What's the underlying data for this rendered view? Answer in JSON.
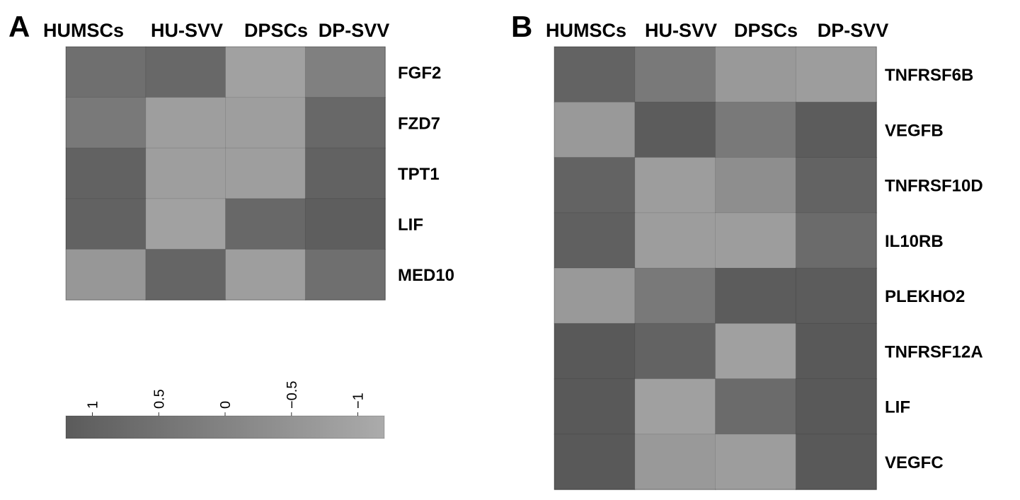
{
  "chart_data": [
    {
      "type": "heatmap",
      "panel_letter": "A",
      "columns": [
        "HUMSCs",
        "HU-SVV",
        "DPSCs",
        "DP-SVV"
      ],
      "rows": [
        "FGF2",
        "FZD7",
        "TPT1",
        "LIF",
        "MED10"
      ],
      "values": [
        [
          0.6,
          0.8,
          -0.9,
          0.1
        ],
        [
          0.3,
          -0.8,
          -0.8,
          0.8
        ],
        [
          1.0,
          -0.8,
          -0.8,
          1.0
        ],
        [
          1.0,
          -0.9,
          0.8,
          1.1
        ],
        [
          -0.6,
          0.9,
          -0.8,
          0.6
        ]
      ],
      "colorbar": {
        "ticks": [
          1,
          0.5,
          0,
          -0.5,
          -1
        ],
        "tick_labels": [
          "1",
          "0.5",
          "0",
          "−0.5",
          "−1"
        ],
        "range": [
          1.2,
          -1.2
        ]
      },
      "colors": {
        "high": "#5b5b5b",
        "low": "#ababab"
      }
    },
    {
      "type": "heatmap",
      "panel_letter": "B",
      "columns": [
        "HUMSCs",
        "HU-SVV",
        "DPSCs",
        "DP-SVV"
      ],
      "rows": [
        "TNFRSF6B",
        "VEGFB",
        "TNFRSF10D",
        "IL10RB",
        "PLEKHO2",
        "TNFRSF12A",
        "LIF",
        "VEGFC"
      ],
      "values": [
        [
          0.8,
          0.2,
          -0.7,
          -0.8
        ],
        [
          -0.7,
          1.0,
          0.2,
          1.0
        ],
        [
          0.8,
          -0.8,
          -0.4,
          0.8
        ],
        [
          0.9,
          -0.8,
          -0.8,
          0.6
        ],
        [
          -0.7,
          0.2,
          1.0,
          1.0
        ],
        [
          1.1,
          0.8,
          -0.9,
          1.1
        ],
        [
          1.1,
          -0.9,
          0.6,
          1.1
        ],
        [
          1.1,
          -0.7,
          -0.8,
          1.1
        ]
      ],
      "colors": {
        "high": "#555555",
        "low": "#ababab"
      }
    }
  ]
}
